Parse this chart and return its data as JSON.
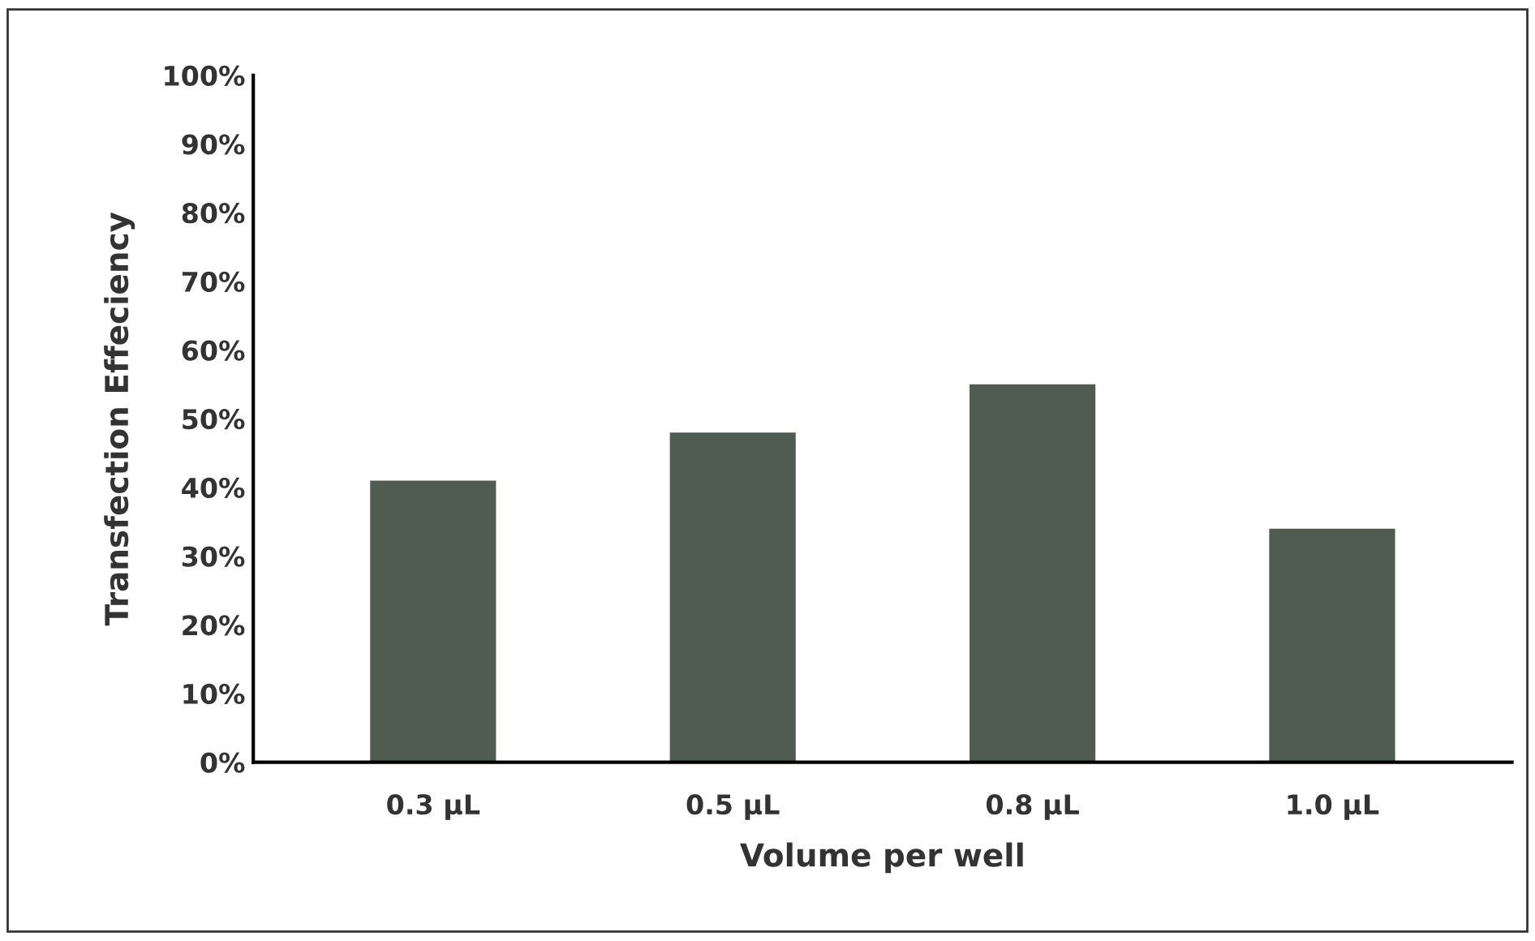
{
  "chart_data": {
    "type": "bar",
    "xlabel": "Volume per well",
    "ylabel": "Transfection Effeciency",
    "categories": [
      "0.3 µL",
      "0.5 µL",
      "0.8 µL",
      "1.0 µL"
    ],
    "values": [
      41,
      48,
      55,
      34
    ],
    "color": "#505b52",
    "ylim": [
      0,
      100
    ],
    "yticks": [
      {
        "value": 0,
        "label": "0%"
      },
      {
        "value": 10,
        "label": "10%"
      },
      {
        "value": 20,
        "label": "20%"
      },
      {
        "value": 30,
        "label": "30%"
      },
      {
        "value": 40,
        "label": "40%"
      },
      {
        "value": 50,
        "label": "50%"
      },
      {
        "value": 60,
        "label": "60%"
      },
      {
        "value": 70,
        "label": "70%"
      },
      {
        "value": 80,
        "label": "80%"
      },
      {
        "value": 90,
        "label": "90%"
      },
      {
        "value": 100,
        "label": "100%"
      }
    ],
    "grid": false,
    "legend": false
  }
}
